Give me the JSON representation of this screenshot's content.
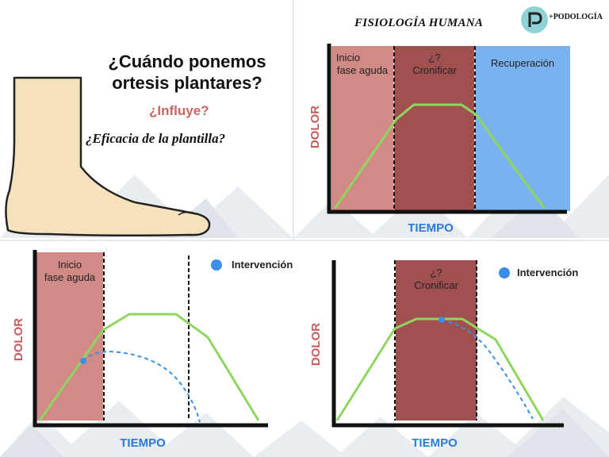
{
  "header": {
    "title": "FISIOLOGÍA HUMANA",
    "brand": "+PODOLOGÍA",
    "logo_icon": "foot-p-logo-icon"
  },
  "intro": {
    "question_line1": "¿Cuándo ponemos",
    "question_line2": "ortesis plantares?",
    "influye": "¿Influye?",
    "eficacia": "¿Eficacia de la plantilla?"
  },
  "colors": {
    "acute": "#d28a87",
    "chronic": "#a15050",
    "recovery": "#7ab2ef",
    "pain_curve": "#8ed660",
    "intervention": "#3a8fe8",
    "axis_label": "#c75c5a"
  },
  "chart_main": {
    "y_label": "DOLOR",
    "x_label": "TIEMPO",
    "phases": [
      "Inicio fase aguda",
      "¿? Cronificar",
      "Recuperación"
    ]
  },
  "chart_acute": {
    "y_label": "DOLOR",
    "x_label": "TIEMPO",
    "phase": "Inicio fase aguda",
    "legend": "Intervención"
  },
  "chart_chronic": {
    "y_label": "DOLOR",
    "x_label": "TIEMPO",
    "phase": "¿? Cronificar",
    "legend": "Intervención"
  }
}
